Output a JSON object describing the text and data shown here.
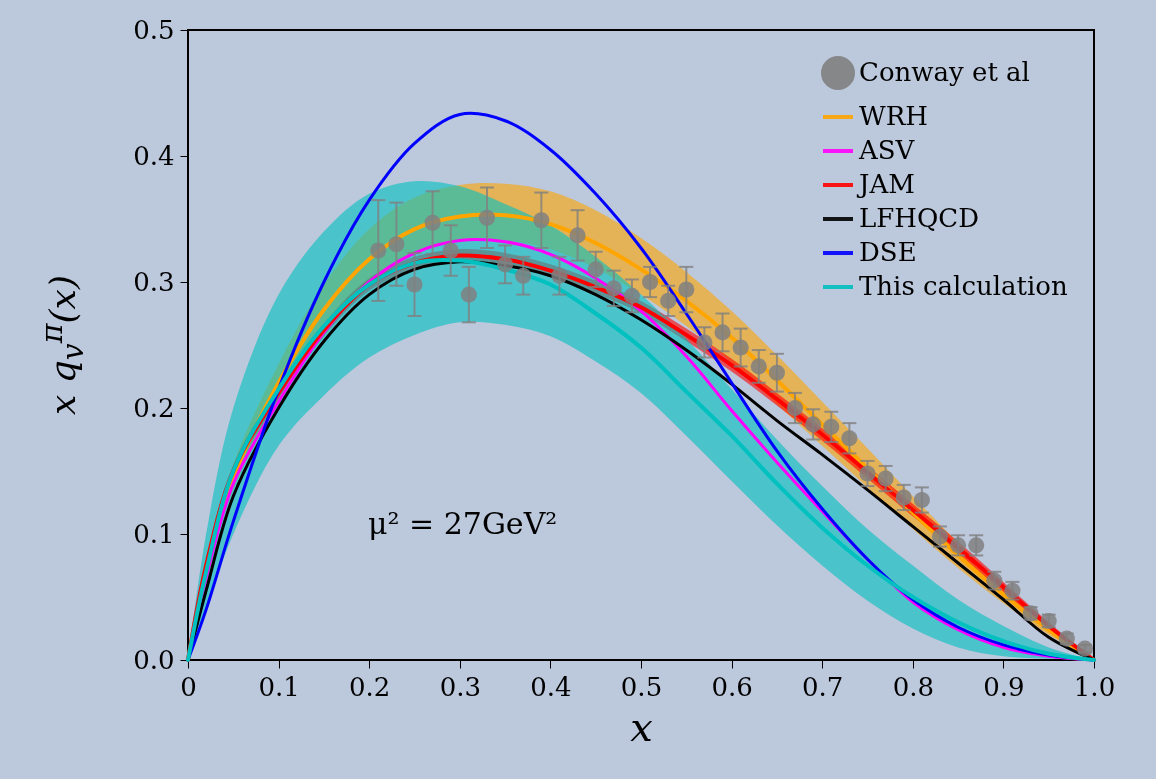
{
  "chart_data": {
    "type": "line",
    "xlabel": "x",
    "ylabel": "x q$_{v}$$^{π}$(x)",
    "annotations": [
      "μ² = 27GeV²"
    ],
    "x": [
      0,
      0.02,
      0.05,
      0.1,
      0.15,
      0.2,
      0.25,
      0.3,
      0.35,
      0.4,
      0.45,
      0.5,
      0.55,
      0.6,
      0.65,
      0.7,
      0.75,
      0.8,
      0.85,
      0.9,
      0.95,
      1.0
    ],
    "xlim": [
      0,
      1
    ],
    "ylim": [
      0,
      0.5
    ],
    "xticks": [
      0,
      0.1,
      0.2,
      0.3,
      0.4,
      0.5,
      0.6,
      0.7,
      0.8,
      0.9,
      {
        "value": 1,
        "label": "1.0"
      }
    ],
    "yticks": [
      {
        "value": 0,
        "label": "0.0"
      },
      0.1,
      0.2,
      0.3,
      0.4,
      0.5
    ],
    "legend": "top right",
    "grid": false,
    "series": [
      {
        "name": "Conway et al",
        "type": "scatter",
        "marker": "circle",
        "color": "#808080",
        "x": [
          0.21,
          0.23,
          0.25,
          0.27,
          0.29,
          0.31,
          0.33,
          0.35,
          0.37,
          0.39,
          0.41,
          0.43,
          0.45,
          0.47,
          0.49,
          0.51,
          0.53,
          0.55,
          0.57,
          0.59,
          0.61,
          0.63,
          0.65,
          0.67,
          0.69,
          0.71,
          0.73,
          0.75,
          0.77,
          0.79,
          0.81,
          0.83,
          0.85,
          0.87,
          0.89,
          0.91,
          0.93,
          0.95,
          0.97,
          0.99
        ],
        "values": [
          0.325,
          0.33,
          0.298,
          0.347,
          0.325,
          0.29,
          0.351,
          0.314,
          0.305,
          0.349,
          0.305,
          0.337,
          0.31,
          0.295,
          0.289,
          0.3,
          0.285,
          0.294,
          0.252,
          0.26,
          0.248,
          0.233,
          0.228,
          0.2,
          0.187,
          0.185,
          0.176,
          0.148,
          0.144,
          0.129,
          0.127,
          0.098,
          0.091,
          0.091,
          0.063,
          0.055,
          0.037,
          0.031,
          0.017,
          0.009
        ],
        "errors": [
          0.04,
          0.033,
          0.025,
          0.025,
          0.02,
          0.022,
          0.024,
          0.015,
          0.015,
          0.022,
          0.015,
          0.02,
          0.014,
          0.014,
          0.013,
          0.012,
          0.012,
          0.018,
          0.012,
          0.015,
          0.015,
          0.013,
          0.015,
          0.012,
          0.012,
          0.012,
          0.012,
          0.01,
          0.01,
          0.01,
          0.01,
          0.008,
          0.008,
          0.008,
          0.007,
          0.007,
          0.005,
          0.005,
          0.004,
          0.003
        ]
      },
      {
        "name": "WRH",
        "color": "#ffa500",
        "values": [
          0,
          0.07,
          0.145,
          0.22,
          0.278,
          0.318,
          0.342,
          0.352,
          0.353,
          0.346,
          0.331,
          0.31,
          0.285,
          0.256,
          0.222,
          0.187,
          0.152,
          0.117,
          0.083,
          0.052,
          0.024,
          0
        ],
        "upper": [
          0,
          0.075,
          0.155,
          0.235,
          0.298,
          0.342,
          0.367,
          0.377,
          0.378,
          0.372,
          0.357,
          0.335,
          0.308,
          0.277,
          0.242,
          0.205,
          0.168,
          0.13,
          0.093,
          0.059,
          0.028,
          0
        ],
        "lower": [
          0,
          0.065,
          0.135,
          0.205,
          0.26,
          0.298,
          0.322,
          0.332,
          0.333,
          0.326,
          0.311,
          0.29,
          0.265,
          0.236,
          0.203,
          0.17,
          0.137,
          0.104,
          0.073,
          0.045,
          0.02,
          0
        ]
      },
      {
        "name": "ASV",
        "color": "#ff00ff",
        "values": [
          0,
          0.065,
          0.14,
          0.205,
          0.26,
          0.3,
          0.323,
          0.333,
          0.332,
          0.322,
          0.303,
          0.277,
          0.241,
          0.198,
          0.157,
          0.118,
          0.08,
          0.046,
          0.024,
          0.01,
          0.003,
          0
        ]
      },
      {
        "name": "JAM",
        "color": "#ff0000",
        "values": [
          0,
          0.075,
          0.15,
          0.212,
          0.262,
          0.298,
          0.315,
          0.321,
          0.318,
          0.309,
          0.296,
          0.28,
          0.258,
          0.234,
          0.207,
          0.179,
          0.149,
          0.119,
          0.089,
          0.058,
          0.027,
          0
        ],
        "upper": [
          0,
          0.08,
          0.155,
          0.217,
          0.267,
          0.303,
          0.32,
          0.326,
          0.323,
          0.314,
          0.301,
          0.285,
          0.263,
          0.239,
          0.212,
          0.184,
          0.154,
          0.124,
          0.094,
          0.062,
          0.03,
          0
        ],
        "lower": [
          0,
          0.07,
          0.145,
          0.207,
          0.257,
          0.293,
          0.31,
          0.316,
          0.313,
          0.304,
          0.291,
          0.275,
          0.253,
          0.229,
          0.202,
          0.174,
          0.144,
          0.114,
          0.084,
          0.054,
          0.024,
          0
        ]
      },
      {
        "name": "LFHQCD",
        "color": "#000000",
        "values": [
          0,
          0.055,
          0.13,
          0.2,
          0.253,
          0.29,
          0.31,
          0.316,
          0.313,
          0.305,
          0.29,
          0.27,
          0.246,
          0.219,
          0.19,
          0.163,
          0.135,
          0.106,
          0.077,
          0.048,
          0.018,
          0
        ]
      },
      {
        "name": "DSE",
        "color": "#0000ff",
        "values": [
          0,
          0.04,
          0.11,
          0.215,
          0.3,
          0.365,
          0.41,
          0.433,
          0.428,
          0.405,
          0.37,
          0.327,
          0.275,
          0.22,
          0.166,
          0.12,
          0.08,
          0.048,
          0.026,
          0.012,
          0.004,
          0
        ]
      },
      {
        "name": "This calculation",
        "color": "#00c0c0",
        "values": [
          0,
          0.07,
          0.15,
          0.215,
          0.265,
          0.298,
          0.315,
          0.317,
          0.31,
          0.298,
          0.275,
          0.248,
          0.213,
          0.178,
          0.14,
          0.105,
          0.075,
          0.05,
          0.03,
          0.015,
          0.005,
          0
        ],
        "upper": [
          0,
          0.1,
          0.2,
          0.29,
          0.34,
          0.37,
          0.38,
          0.376,
          0.362,
          0.345,
          0.32,
          0.29,
          0.255,
          0.215,
          0.175,
          0.138,
          0.104,
          0.075,
          0.048,
          0.027,
          0.01,
          0
        ],
        "lower": [
          0,
          0.04,
          0.1,
          0.17,
          0.21,
          0.24,
          0.258,
          0.268,
          0.266,
          0.257,
          0.237,
          0.212,
          0.178,
          0.142,
          0.107,
          0.075,
          0.047,
          0.025,
          0.01,
          0.003,
          0.001,
          0
        ]
      }
    ]
  }
}
